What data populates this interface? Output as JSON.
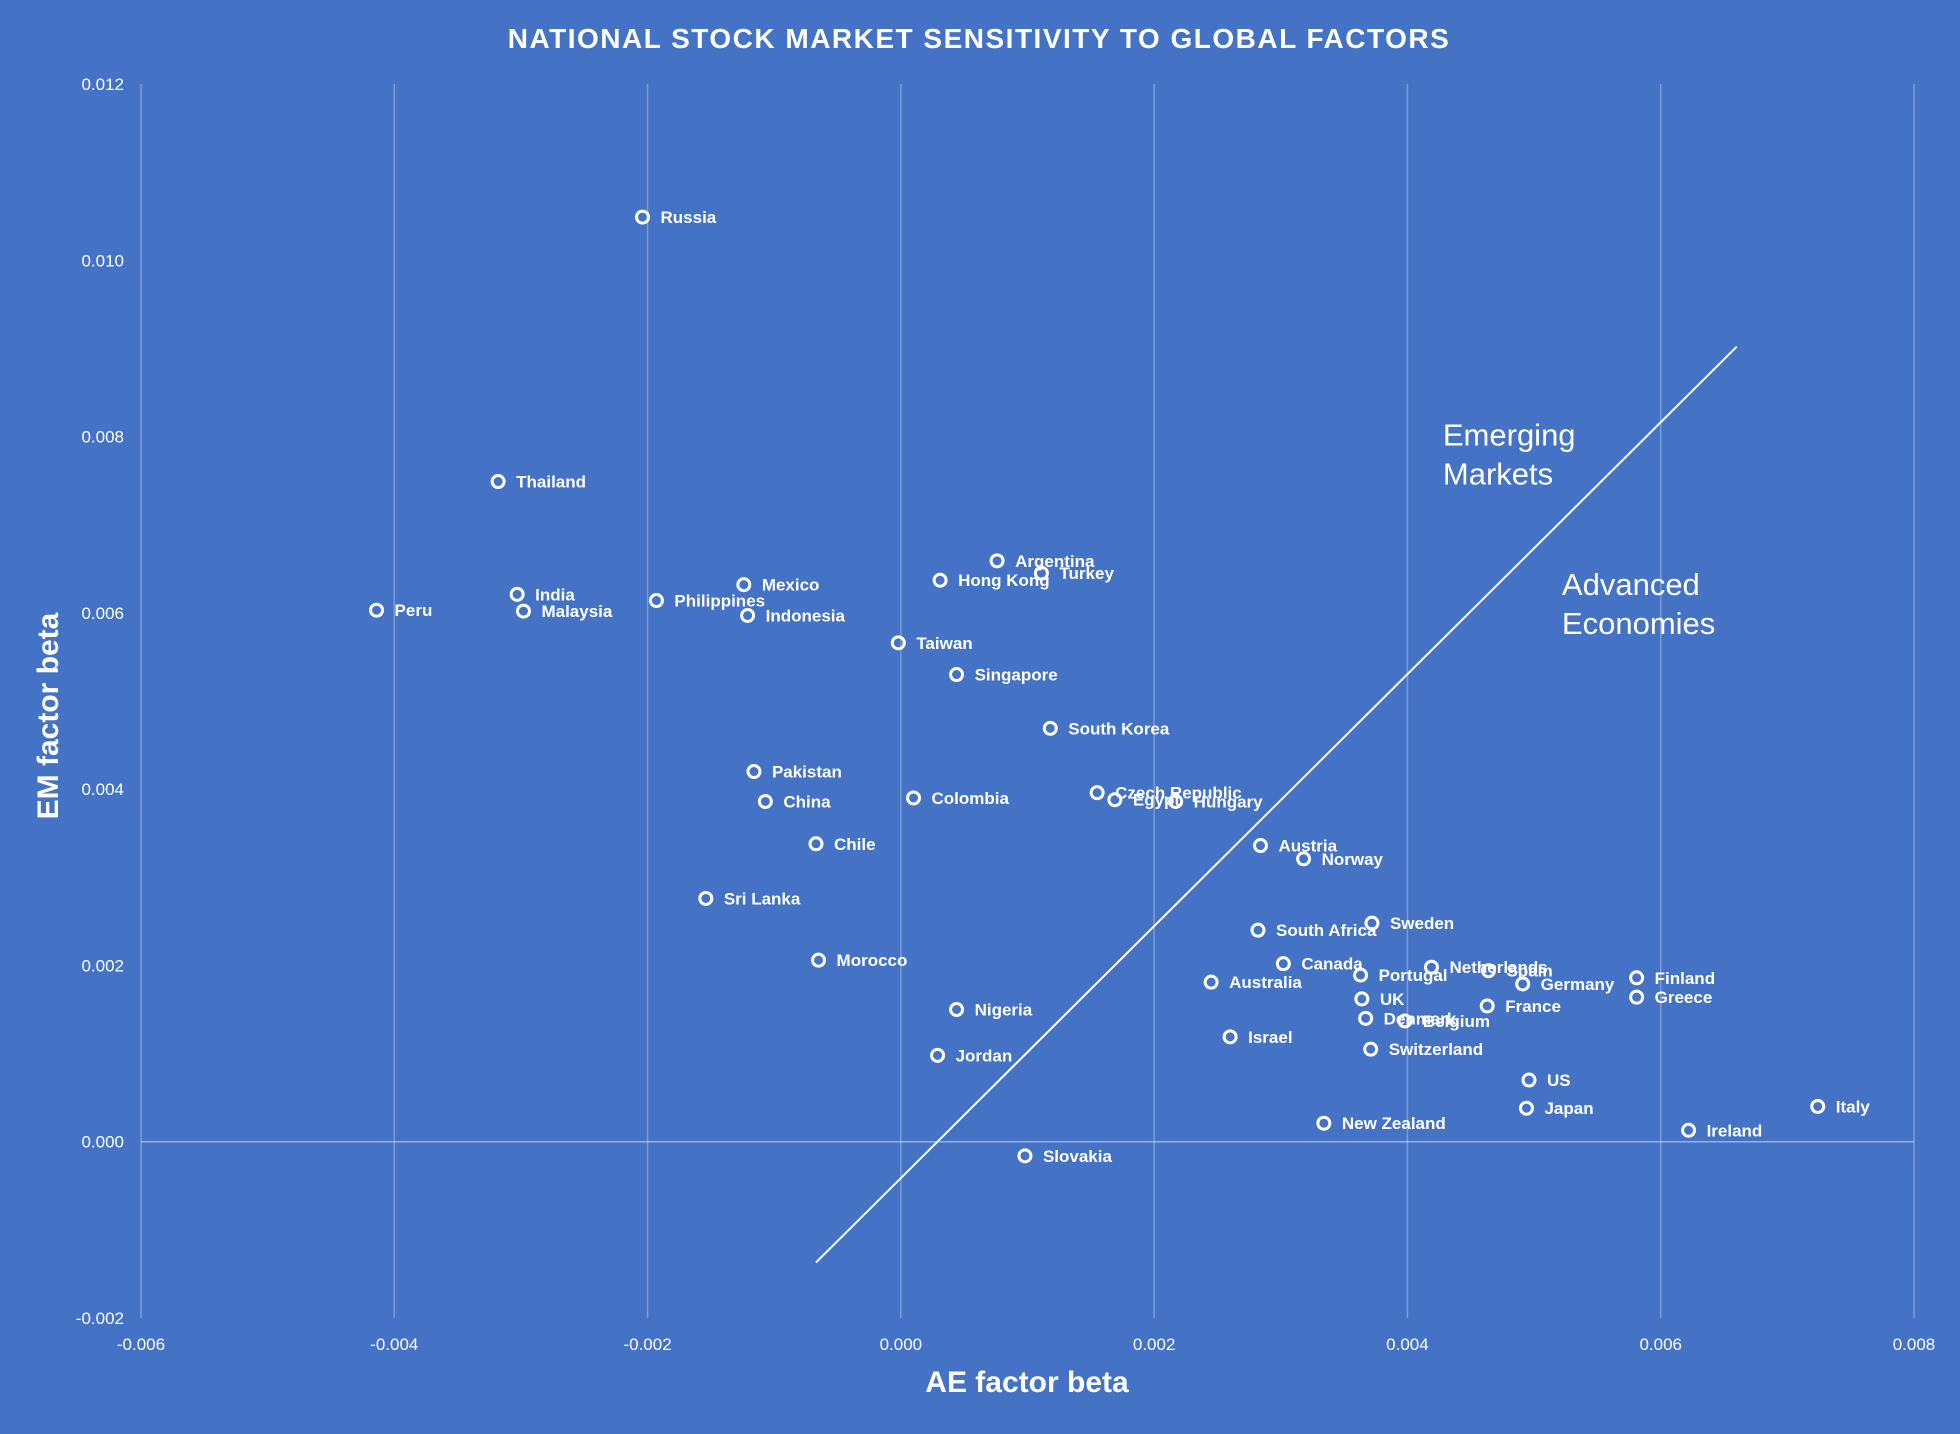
{
  "chart_data": {
    "type": "scatter",
    "title": "NATIONAL STOCK MARKET SENSITIVITY TO GLOBAL FACTORS",
    "xlabel": "AE factor beta",
    "ylabel": "EM factor beta",
    "xlim": [
      -0.006,
      0.008
    ],
    "ylim": [
      -0.002,
      0.012
    ],
    "x_ticks": [
      "-0.006",
      "-0.004",
      "-0.002",
      "0.000",
      "0.002",
      "0.004",
      "0.006",
      "0.008"
    ],
    "y_ticks": [
      "-0.002",
      "0.000",
      "0.002",
      "0.004",
      "0.006",
      "0.008",
      "0.010",
      "0.012"
    ],
    "grid": "vertical",
    "marker_color": "#ffffff",
    "background_color": "#4472C4",
    "divider_line": {
      "x": [
        -0.00067,
        0.0066
      ],
      "y": [
        -0.00137,
        0.00902
      ]
    },
    "region_labels": [
      {
        "text": [
          "Emerging",
          "Markets"
        ],
        "x": 0.00428,
        "y": 0.0079
      },
      {
        "text": [
          "Advanced",
          "Economies"
        ],
        "x": 0.00522,
        "y": 0.0062
      }
    ],
    "points": [
      {
        "label": "Russia",
        "x": -0.00204,
        "y": 0.01049
      },
      {
        "label": "Thailand",
        "x": -0.00318,
        "y": 0.00749
      },
      {
        "label": "India",
        "x": -0.00303,
        "y": 0.00621
      },
      {
        "label": "Peru",
        "x": -0.00414,
        "y": 0.00603
      },
      {
        "label": "Malaysia",
        "x": -0.00298,
        "y": 0.00602
      },
      {
        "label": "Philippines",
        "x": -0.00193,
        "y": 0.00614
      },
      {
        "label": "Mexico",
        "x": -0.00124,
        "y": 0.00632
      },
      {
        "label": "Indonesia",
        "x": -0.00121,
        "y": 0.00597
      },
      {
        "label": "Argentina",
        "x": 0.00076,
        "y": 0.00659
      },
      {
        "label": "Hong Kong",
        "x": 0.00031,
        "y": 0.00637
      },
      {
        "label": "Turkey",
        "x": 0.00111,
        "y": 0.00645
      },
      {
        "label": "Taiwan",
        "x": -2e-05,
        "y": 0.00566
      },
      {
        "label": "Singapore",
        "x": 0.00044,
        "y": 0.0053
      },
      {
        "label": "South Korea",
        "x": 0.00118,
        "y": 0.00469
      },
      {
        "label": "Pakistan",
        "x": -0.00116,
        "y": 0.0042
      },
      {
        "label": "China",
        "x": -0.00107,
        "y": 0.00386
      },
      {
        "label": "Colombia",
        "x": 0.0001,
        "y": 0.0039
      },
      {
        "label": "Czech Republic",
        "x": 0.00155,
        "y": 0.00396
      },
      {
        "label": "Egypt",
        "x": 0.00169,
        "y": 0.00388
      },
      {
        "label": "Hungary",
        "x": 0.00217,
        "y": 0.00386
      },
      {
        "label": "Chile",
        "x": -0.00067,
        "y": 0.00338
      },
      {
        "label": "Austria",
        "x": 0.00284,
        "y": 0.00336
      },
      {
        "label": "Norway",
        "x": 0.00318,
        "y": 0.00321
      },
      {
        "label": "Sri Lanka",
        "x": -0.00154,
        "y": 0.00276
      },
      {
        "label": "South Africa",
        "x": 0.00282,
        "y": 0.0024
      },
      {
        "label": "Sweden",
        "x": 0.00372,
        "y": 0.00248
      },
      {
        "label": "Morocco",
        "x": -0.00065,
        "y": 0.00206
      },
      {
        "label": "Canada",
        "x": 0.00302,
        "y": 0.00202
      },
      {
        "label": "Netherlands",
        "x": 0.00419,
        "y": 0.00198
      },
      {
        "label": "Spain",
        "x": 0.00464,
        "y": 0.00194
      },
      {
        "label": "Portugal",
        "x": 0.00363,
        "y": 0.00189
      },
      {
        "label": "Australia",
        "x": 0.00245,
        "y": 0.00181
      },
      {
        "label": "Germany",
        "x": 0.00491,
        "y": 0.00179
      },
      {
        "label": "Finland",
        "x": 0.00581,
        "y": 0.00186
      },
      {
        "label": "Greece",
        "x": 0.00581,
        "y": 0.00164
      },
      {
        "label": "UK",
        "x": 0.00364,
        "y": 0.00162
      },
      {
        "label": "France",
        "x": 0.00463,
        "y": 0.00154
      },
      {
        "label": "Nigeria",
        "x": 0.00044,
        "y": 0.0015
      },
      {
        "label": "Denmark",
        "x": 0.00367,
        "y": 0.0014
      },
      {
        "label": "Belgium",
        "x": 0.00398,
        "y": 0.00137
      },
      {
        "label": "Israel",
        "x": 0.0026,
        "y": 0.00119
      },
      {
        "label": "Switzerland",
        "x": 0.00371,
        "y": 0.00105
      },
      {
        "label": "Jordan",
        "x": 0.00029,
        "y": 0.00098
      },
      {
        "label": "US",
        "x": 0.00496,
        "y": 0.0007
      },
      {
        "label": "Japan",
        "x": 0.00494,
        "y": 0.00038
      },
      {
        "label": "Italy",
        "x": 0.00724,
        "y": 0.0004
      },
      {
        "label": "New Zealand",
        "x": 0.00334,
        "y": 0.00021
      },
      {
        "label": "Ireland",
        "x": 0.00622,
        "y": 0.00013
      },
      {
        "label": "Slovakia",
        "x": 0.00098,
        "y": -0.00016
      }
    ]
  }
}
